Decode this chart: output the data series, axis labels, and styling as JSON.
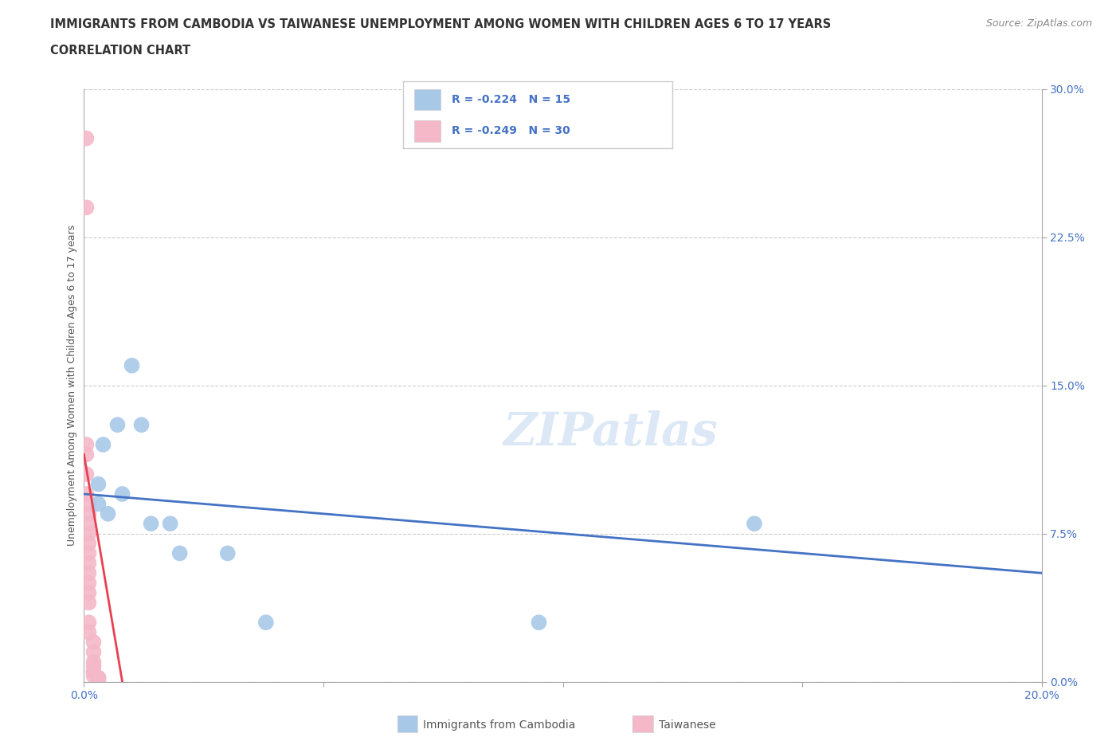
{
  "title_line1": "IMMIGRANTS FROM CAMBODIA VS TAIWANESE UNEMPLOYMENT AMONG WOMEN WITH CHILDREN AGES 6 TO 17 YEARS",
  "title_line2": "CORRELATION CHART",
  "source": "Source: ZipAtlas.com",
  "ylabel": "Unemployment Among Women with Children Ages 6 to 17 years",
  "xlim": [
    0.0,
    0.2
  ],
  "ylim": [
    0.0,
    0.3
  ],
  "ytick_positions": [
    0.0,
    0.075,
    0.15,
    0.225,
    0.3
  ],
  "ytick_labels": [
    "0.0%",
    "7.5%",
    "15.0%",
    "22.5%",
    "30.0%"
  ],
  "xtick_positions": [
    0.0,
    0.05,
    0.1,
    0.15,
    0.2
  ],
  "xtick_labels": [
    "0.0%",
    "",
    "",
    "",
    "20.0%"
  ],
  "grid_color": "#cccccc",
  "background_color": "#ffffff",
  "cambodia_color": "#a8c8e8",
  "taiwanese_color": "#f4b8c8",
  "trend_cambodia_color": "#4472c4",
  "trend_taiwanese_color": "#e84050",
  "watermark": "ZIPatlas",
  "legend_R_cambodia": "R = -0.224",
  "legend_N_cambodia": "N = 15",
  "legend_R_taiwanese": "R = -0.249",
  "legend_N_taiwanese": "N = 30",
  "cambodia_x": [
    0.003,
    0.003,
    0.004,
    0.005,
    0.007,
    0.008,
    0.01,
    0.012,
    0.014,
    0.018,
    0.02,
    0.03,
    0.038,
    0.095,
    0.14
  ],
  "cambodia_y": [
    0.1,
    0.09,
    0.12,
    0.085,
    0.13,
    0.095,
    0.16,
    0.13,
    0.08,
    0.08,
    0.065,
    0.065,
    0.03,
    0.03,
    0.08
  ],
  "taiwanese_x": [
    0.0005,
    0.0005,
    0.0005,
    0.0005,
    0.0005,
    0.0005,
    0.001,
    0.001,
    0.001,
    0.001,
    0.001,
    0.001,
    0.001,
    0.001,
    0.001,
    0.001,
    0.001,
    0.001,
    0.001,
    0.002,
    0.002,
    0.002,
    0.002,
    0.002,
    0.002,
    0.002,
    0.003,
    0.003,
    0.003,
    0.003
  ],
  "taiwanese_y": [
    0.275,
    0.24,
    0.12,
    0.115,
    0.105,
    0.095,
    0.09,
    0.085,
    0.08,
    0.075,
    0.07,
    0.065,
    0.06,
    0.055,
    0.05,
    0.045,
    0.04,
    0.03,
    0.025,
    0.02,
    0.015,
    0.01,
    0.008,
    0.005,
    0.005,
    0.003,
    0.002,
    0.002,
    0.001,
    0.0
  ],
  "trend_cambodia_x_start": 0.0,
  "trend_cambodia_x_end": 0.2,
  "trend_cambodia_y_start": 0.095,
  "trend_cambodia_y_end": 0.055,
  "trend_taiwanese_x_start": 0.0,
  "trend_taiwanese_x_end": 0.008,
  "trend_taiwanese_y_start": 0.115,
  "trend_taiwanese_y_end": 0.0
}
